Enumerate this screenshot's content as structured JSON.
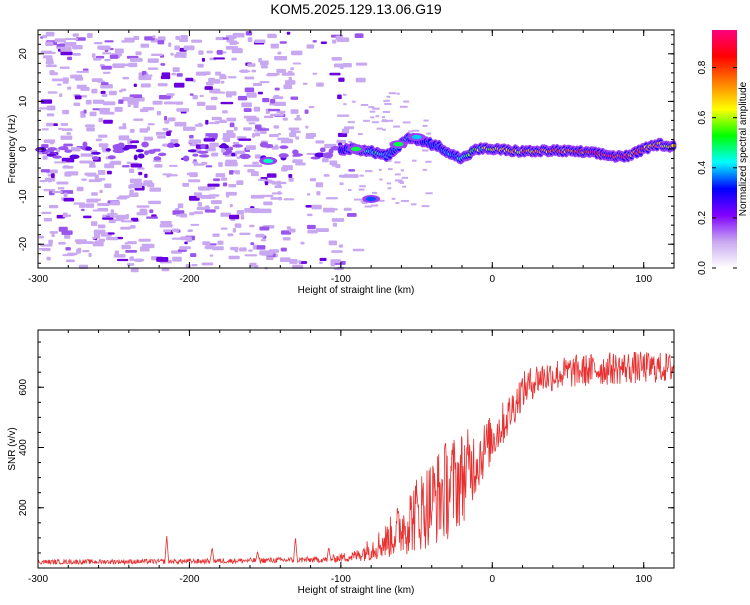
{
  "figure": {
    "title": "KOM5.2025.129.13.06.G19"
  },
  "chart_data": [
    {
      "type": "heatmap",
      "xlabel": "Height of straight line (km)",
      "ylabel": "Frequency (Hz)",
      "xlim": [
        -300,
        120
      ],
      "ylim": [
        -25,
        25
      ],
      "xticks": [
        -300,
        -200,
        -100,
        0,
        100
      ],
      "yticks": [
        -20,
        -10,
        0,
        10,
        20
      ],
      "colorbar": {
        "label": "Normalized spectral amplitude",
        "range": [
          0,
          0.95
        ],
        "ticks": [
          0.0,
          0.2,
          0.4,
          0.6,
          0.8
        ],
        "colormap": [
          "#ffffff",
          "#c8a8f0",
          "#8000ff",
          "#0000ff",
          "#00ffff",
          "#00ff00",
          "#ffff00",
          "#ff8000",
          "#ff0000",
          "#ff0080"
        ]
      },
      "ridge": {
        "x": [
          -100,
          -90,
          -80,
          -75,
          -70,
          -65,
          -60,
          -55,
          -50,
          -45,
          -40,
          -35,
          -30,
          -25,
          -20,
          -15,
          -10,
          0,
          10,
          20,
          30,
          40,
          50,
          60,
          70,
          80,
          90,
          100,
          110,
          120
        ],
        "freq": [
          0,
          0,
          -0.5,
          -1,
          -1.5,
          -0.5,
          1,
          2.5,
          2,
          1.5,
          1,
          0.5,
          -0.5,
          -1.5,
          -2,
          -1,
          0,
          0,
          -0.3,
          -0.5,
          -0.5,
          -0.3,
          -0.5,
          -0.6,
          -1,
          -1.5,
          -1.5,
          0,
          1,
          0.5
        ],
        "amplitude": [
          0.3,
          0.35,
          0.4,
          0.45,
          0.4,
          0.35,
          0.4,
          0.35,
          0.3,
          0.3,
          0.35,
          0.35,
          0.4,
          0.4,
          0.45,
          0.5,
          0.55,
          0.6,
          0.65,
          0.7,
          0.7,
          0.75,
          0.75,
          0.8,
          0.85,
          0.85,
          0.8,
          0.75,
          0.7,
          0.65
        ]
      }
    },
    {
      "type": "line",
      "xlabel": "Height of straight line (km)",
      "ylabel": "SNR (v/v)",
      "xlim": [
        -300,
        120
      ],
      "ylim": [
        0,
        790
      ],
      "xticks": [
        -300,
        -200,
        -100,
        0,
        100
      ],
      "yticks": [
        200,
        400,
        600
      ],
      "series_color": "#e83030",
      "envelope": {
        "x": [
          -300,
          -200,
          -110,
          -90,
          -70,
          -50,
          -30,
          -20,
          -10,
          0,
          10,
          20,
          30,
          50,
          70,
          90,
          120
        ],
        "mean": [
          20,
          22,
          28,
          40,
          90,
          180,
          260,
          300,
          360,
          430,
          500,
          590,
          630,
          650,
          660,
          665,
          665
        ],
        "spread": [
          8,
          8,
          10,
          20,
          60,
          130,
          170,
          160,
          110,
          80,
          70,
          60,
          55,
          55,
          55,
          55,
          50
        ]
      },
      "peaks": [
        {
          "x": -215,
          "y": 110
        },
        {
          "x": -185,
          "y": 70
        },
        {
          "x": -155,
          "y": 55
        },
        {
          "x": -130,
          "y": 105
        },
        {
          "x": -108,
          "y": 70
        }
      ]
    }
  ]
}
